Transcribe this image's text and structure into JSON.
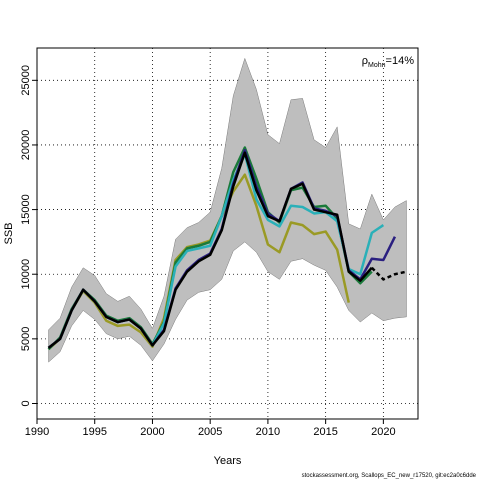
{
  "chart_data": {
    "type": "line",
    "xlabel": "Years",
    "ylabel": "SSB",
    "xlim": [
      1990,
      2023
    ],
    "ylim": [
      -1200,
      27500
    ],
    "x_ticks": [
      "1990",
      "1995",
      "2000",
      "2005",
      "2010",
      "2015",
      "2020"
    ],
    "y_ticks": [
      "0",
      "5000",
      "10000",
      "15000",
      "20000",
      "25000"
    ],
    "grid": "dotted",
    "annotation": {
      "rho": "ρ",
      "subscript": "Mohn",
      "value": "=14%"
    },
    "footer": "stockassessment.org, Scallops_EC_new_r17520, git:ec2a0c6dde",
    "colors": {
      "band": "#bebebe",
      "base": "#000000",
      "peel1": "#2a1f80",
      "peel2": "#2ab0b8",
      "peel3": "#1a7a3a",
      "peel4": "#9a9a25"
    },
    "band": {
      "x": [
        1991,
        1992,
        1993,
        1994,
        1995,
        1996,
        1997,
        1998,
        1999,
        2000,
        2001,
        2002,
        2003,
        2004,
        2005,
        2006,
        2007,
        2008,
        2009,
        2010,
        2011,
        2012,
        2013,
        2014,
        2015,
        2016,
        2017,
        2018,
        2019,
        2020,
        2021,
        2022
      ],
      "upper": [
        5700,
        6600,
        9000,
        10500,
        9900,
        8500,
        7900,
        8300,
        7300,
        5800,
        8300,
        12700,
        13600,
        14000,
        14800,
        18200,
        23800,
        26700,
        24300,
        20800,
        20100,
        23500,
        23600,
        20400,
        19800,
        21400,
        13900,
        13500,
        16200,
        14200,
        15200,
        15700
      ],
      "lower": [
        3200,
        4000,
        6000,
        7200,
        6500,
        5400,
        5000,
        5200,
        4500,
        3300,
        4600,
        6500,
        8000,
        8600,
        8800,
        9600,
        11800,
        12500,
        11700,
        10200,
        9600,
        11000,
        11200,
        10700,
        10300,
        9000,
        7200,
        6300,
        7000,
        6400,
        6600,
        6700
      ]
    },
    "series": [
      {
        "name": "",
        "color_key": "base",
        "dashed_from": 2019,
        "x": [
          1991,
          1992,
          1993,
          1994,
          1995,
          1996,
          1997,
          1998,
          1999,
          2000,
          2001,
          2002,
          2003,
          2004,
          2005,
          2006,
          2007,
          2008,
          2009,
          2010,
          2011,
          2012,
          2013,
          2014,
          2015,
          2016,
          2017,
          2018,
          2019,
          2020,
          2021,
          2022
        ],
        "values": [
          4300,
          5000,
          7200,
          8800,
          7900,
          6700,
          6300,
          6500,
          5800,
          4500,
          5600,
          8800,
          10200,
          11000,
          11500,
          13400,
          16800,
          19400,
          16500,
          14500,
          14100,
          16600,
          17000,
          15000,
          14800,
          14600,
          10200,
          9500,
          10500,
          9600,
          10000,
          10200
        ]
      },
      {
        "name": "",
        "color_key": "peel1",
        "x": [
          1991,
          1992,
          1993,
          1994,
          1995,
          1996,
          1997,
          1998,
          1999,
          2000,
          2001,
          2002,
          2003,
          2004,
          2005,
          2006,
          2007,
          2008,
          2009,
          2010,
          2011,
          2012,
          2013,
          2014,
          2015,
          2016,
          2017,
          2018,
          2019,
          2020,
          2021
        ],
        "values": [
          4300,
          5000,
          7200,
          8800,
          7900,
          6700,
          6300,
          6500,
          5800,
          4500,
          5700,
          8900,
          10300,
          11100,
          11600,
          13500,
          17000,
          19600,
          16800,
          14700,
          14100,
          16600,
          17100,
          15100,
          14900,
          14500,
          10300,
          9600,
          11200,
          11100,
          12900
        ]
      },
      {
        "name": "",
        "color_key": "peel2",
        "x": [
          1991,
          1992,
          1993,
          1994,
          1995,
          1996,
          1997,
          1998,
          1999,
          2000,
          2001,
          2002,
          2003,
          2004,
          2005,
          2006,
          2007,
          2008,
          2009,
          2010,
          2011,
          2012,
          2013,
          2014,
          2015,
          2016,
          2017,
          2018,
          2019,
          2020
        ],
        "values": [
          4300,
          5000,
          7200,
          8800,
          7900,
          6700,
          6300,
          6500,
          5800,
          4500,
          6200,
          10600,
          11800,
          12000,
          12200,
          14500,
          17300,
          19300,
          15800,
          14200,
          13700,
          15300,
          15200,
          14700,
          14800,
          14100,
          10400,
          10000,
          13200,
          13800
        ]
      },
      {
        "name": "",
        "color_key": "peel3",
        "x": [
          1991,
          1992,
          1993,
          1994,
          1995,
          1996,
          1997,
          1998,
          1999,
          2000,
          2001,
          2002,
          2003,
          2004,
          2005,
          2006,
          2007,
          2008,
          2009,
          2010,
          2011,
          2012,
          2013,
          2014,
          2015,
          2016,
          2017,
          2018,
          2019
        ],
        "values": [
          4200,
          5100,
          7300,
          8800,
          8000,
          6800,
          6400,
          6600,
          5900,
          4600,
          6300,
          10900,
          12000,
          12200,
          12500,
          14500,
          17900,
          19800,
          17400,
          14800,
          14000,
          16500,
          16700,
          15200,
          15300,
          14300,
          10200,
          9300,
          10200
        ]
      },
      {
        "name": "",
        "color_key": "peel4",
        "x": [
          1991,
          1992,
          1993,
          1994,
          1995,
          1996,
          1997,
          1998,
          1999,
          2000,
          2001,
          2002,
          2003,
          2004,
          2005,
          2006,
          2007,
          2008,
          2009,
          2010,
          2011,
          2012,
          2013,
          2014,
          2015,
          2016,
          2017
        ],
        "values": [
          4200,
          5000,
          7200,
          8700,
          7800,
          6400,
          6000,
          6100,
          5500,
          4400,
          6600,
          11100,
          12100,
          12300,
          12600,
          14500,
          16400,
          17700,
          15300,
          12300,
          11700,
          14000,
          13800,
          13100,
          13300,
          11900,
          7800
        ]
      }
    ]
  }
}
